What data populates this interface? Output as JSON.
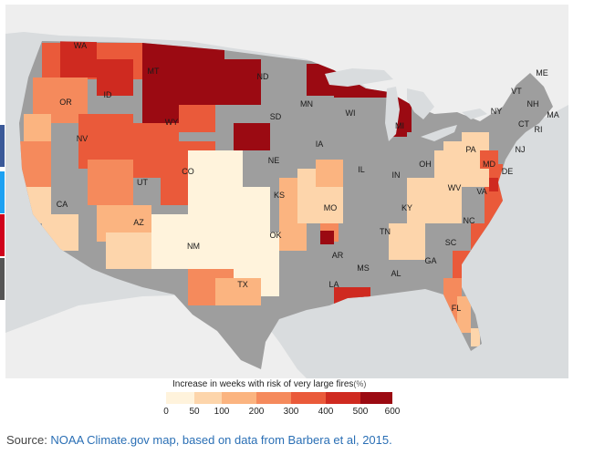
{
  "share_bar_colors": [
    "#3b5998",
    "#1da1f2",
    "#d0021b",
    "#555555"
  ],
  "map": {
    "colors": {
      "ocean": "#d9dcde",
      "land_outside": "#eeeeee",
      "no_data": "#9e9e9e",
      "lakes": "#d9dcde"
    },
    "state_labels": [
      "WA",
      "MT",
      "ND",
      "MN",
      "ID",
      "OR",
      "SD",
      "WY",
      "WI",
      "MI",
      "NY",
      "VT",
      "NH",
      "ME",
      "MA",
      "CT",
      "RI",
      "NJ",
      "PA",
      "MD",
      "DE",
      "NE",
      "IA",
      "OH",
      "IL",
      "IN",
      "NV",
      "UT",
      "CO",
      "KS",
      "MO",
      "KY",
      "WV",
      "VA",
      "CA",
      "AZ",
      "NM",
      "OK",
      "TN",
      "NC",
      "AR",
      "SC",
      "MS",
      "AL",
      "GA",
      "LA",
      "TX",
      "FL"
    ]
  },
  "legend": {
    "title": "Increase in weeks with risk of very large fires",
    "unit": "(%)",
    "bins": [
      {
        "from": 0,
        "to": 50,
        "color": "#fff3dc"
      },
      {
        "from": 50,
        "to": 100,
        "color": "#fdd5ab"
      },
      {
        "from": 100,
        "to": 200,
        "color": "#fbb480"
      },
      {
        "from": 200,
        "to": 300,
        "color": "#f58a5c"
      },
      {
        "from": 300,
        "to": 400,
        "color": "#ea5a3a"
      },
      {
        "from": 400,
        "to": 500,
        "color": "#cf2a20"
      },
      {
        "from": 500,
        "to": 600,
        "color": "#9b0a12"
      }
    ],
    "ticks": [
      "0",
      "50",
      "100",
      "200",
      "300",
      "400",
      "500",
      "600"
    ]
  },
  "source": {
    "prefix": "Source: ",
    "link_text": "NOAA Climate.gov map, based on data from Barbera et al, 2015."
  }
}
